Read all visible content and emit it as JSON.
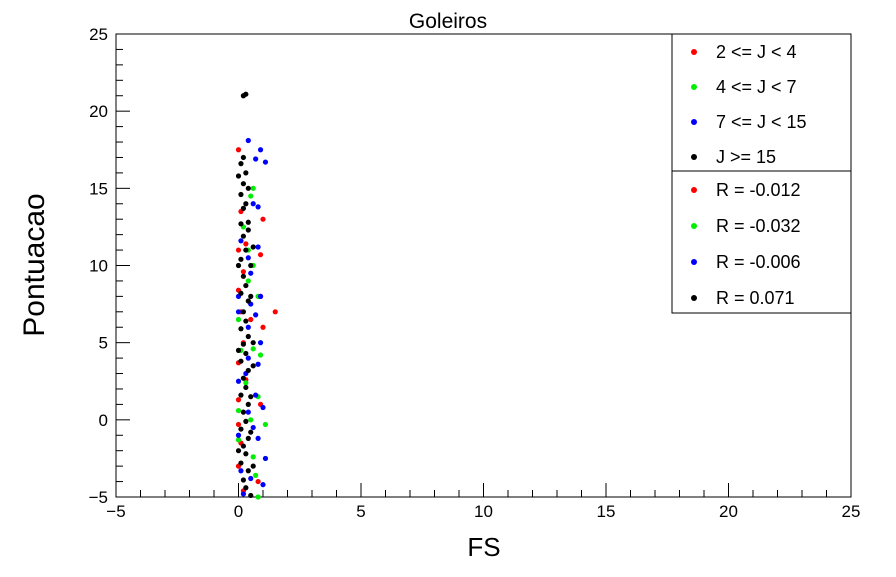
{
  "chart_data": {
    "type": "scatter",
    "title": "Goleiros",
    "xlabel": "FS",
    "ylabel": "Pontuacao",
    "xlim": [
      -5,
      25
    ],
    "ylim": [
      -5,
      25
    ],
    "xticks": [
      -5,
      0,
      5,
      10,
      15,
      20,
      25
    ],
    "yticks": [
      -5,
      0,
      5,
      10,
      15,
      20,
      25
    ],
    "xtick_labels": [
      "−5",
      "0",
      "5",
      "10",
      "15",
      "20",
      "25"
    ],
    "ytick_labels": [
      "−5",
      "0",
      "5",
      "10",
      "15",
      "20",
      "25"
    ],
    "grid": false,
    "legend_position": "top-right",
    "series": [
      {
        "name": "2 <= J < 4",
        "color": "#ff0000",
        "points": [
          [
            0.0,
            17.5
          ],
          [
            0.1,
            13.5
          ],
          [
            0.0,
            11.0
          ],
          [
            1.0,
            13.0
          ],
          [
            0.9,
            10.7
          ],
          [
            0.2,
            9.6
          ],
          [
            0.0,
            8.4
          ],
          [
            0.1,
            7.0
          ],
          [
            0.9,
            8.0
          ],
          [
            1.5,
            7.0
          ],
          [
            1.0,
            6.0
          ],
          [
            0.2,
            5.0
          ],
          [
            0.0,
            3.7
          ],
          [
            0.3,
            2.6
          ],
          [
            0.9,
            1.0
          ],
          [
            0.0,
            -0.3
          ],
          [
            0.1,
            -1.5
          ],
          [
            0.0,
            -3.0
          ],
          [
            0.8,
            -4.0
          ],
          [
            0.2,
            -4.6
          ],
          [
            0.5,
            6.5
          ],
          [
            0.3,
            11.4
          ],
          [
            0.0,
            1.3
          ]
        ]
      },
      {
        "name": "4 <= J < 7",
        "color": "#00ee00",
        "points": [
          [
            0.6,
            15.0
          ],
          [
            0.5,
            14.5
          ],
          [
            0.4,
            11.0
          ],
          [
            0.6,
            10.0
          ],
          [
            0.4,
            9.0
          ],
          [
            0.8,
            8.0
          ],
          [
            0.0,
            6.5
          ],
          [
            0.9,
            5.0
          ],
          [
            0.1,
            4.5
          ],
          [
            0.9,
            4.2
          ],
          [
            0.3,
            2.4
          ],
          [
            0.8,
            1.5
          ],
          [
            0.0,
            0.6
          ],
          [
            1.1,
            -0.3
          ],
          [
            0.0,
            -1.3
          ],
          [
            1.1,
            -2.5
          ],
          [
            0.7,
            -3.6
          ],
          [
            0.8,
            -5.0
          ],
          [
            0.5,
            0.0
          ],
          [
            0.6,
            4.6
          ],
          [
            0.2,
            12.5
          ],
          [
            0.6,
            -2.4
          ]
        ]
      },
      {
        "name": "7 <= J < 15",
        "color": "#0000ff",
        "points": [
          [
            0.4,
            18.1
          ],
          [
            0.9,
            17.5
          ],
          [
            0.7,
            16.9
          ],
          [
            1.1,
            16.7
          ],
          [
            0.6,
            14.0
          ],
          [
            0.8,
            13.8
          ],
          [
            0.1,
            11.6
          ],
          [
            0.8,
            11.2
          ],
          [
            0.4,
            10.5
          ],
          [
            0.0,
            8.0
          ],
          [
            0.9,
            8.0
          ],
          [
            0.5,
            7.5
          ],
          [
            0.0,
            7.0
          ],
          [
            0.4,
            6.0
          ],
          [
            0.9,
            5.0
          ],
          [
            0.4,
            4.0
          ],
          [
            0.8,
            3.6
          ],
          [
            0.0,
            2.5
          ],
          [
            0.7,
            1.6
          ],
          [
            0.4,
            0.5
          ],
          [
            1.0,
            0.8
          ],
          [
            0.0,
            -1.0
          ],
          [
            0.8,
            -1.2
          ],
          [
            1.1,
            -2.5
          ],
          [
            0.1,
            -3.3
          ],
          [
            0.5,
            -3.8
          ],
          [
            1.0,
            -4.2
          ],
          [
            0.2,
            -4.8
          ],
          [
            0.3,
            3.0
          ],
          [
            0.5,
            9.5
          ],
          [
            0.6,
            -0.5
          ],
          [
            0.7,
            6.8
          ]
        ]
      },
      {
        "name": "J >= 15",
        "color": "#000000",
        "points": [
          [
            0.3,
            21.1
          ],
          [
            0.2,
            21.0
          ],
          [
            0.2,
            17.0
          ],
          [
            0.1,
            16.6
          ],
          [
            0.3,
            16.0
          ],
          [
            0.2,
            15.3
          ],
          [
            0.4,
            15.0
          ],
          [
            0.1,
            14.6
          ],
          [
            0.3,
            14.0
          ],
          [
            0.2,
            13.7
          ],
          [
            0.1,
            12.7
          ],
          [
            0.4,
            12.3
          ],
          [
            0.2,
            11.9
          ],
          [
            0.3,
            11.0
          ],
          [
            0.1,
            10.4
          ],
          [
            0.5,
            10.0
          ],
          [
            0.2,
            9.3
          ],
          [
            0.3,
            8.7
          ],
          [
            0.1,
            8.2
          ],
          [
            0.4,
            7.7
          ],
          [
            0.2,
            7.0
          ],
          [
            0.3,
            6.4
          ],
          [
            0.1,
            5.9
          ],
          [
            0.4,
            5.4
          ],
          [
            0.2,
            4.9
          ],
          [
            0.3,
            4.3
          ],
          [
            0.1,
            3.8
          ],
          [
            0.4,
            3.2
          ],
          [
            0.2,
            2.7
          ],
          [
            0.3,
            2.1
          ],
          [
            0.1,
            1.6
          ],
          [
            0.4,
            1.0
          ],
          [
            0.2,
            0.5
          ],
          [
            0.3,
            -0.1
          ],
          [
            0.1,
            -0.6
          ],
          [
            0.4,
            -1.2
          ],
          [
            0.2,
            -1.7
          ],
          [
            0.3,
            -2.2
          ],
          [
            0.1,
            -2.8
          ],
          [
            0.4,
            -3.3
          ],
          [
            0.2,
            -3.9
          ],
          [
            0.3,
            -4.4
          ],
          [
            0.5,
            -4.9
          ],
          [
            0.6,
            -3.0
          ],
          [
            0.5,
            1.5
          ],
          [
            0.6,
            5.0
          ],
          [
            0.5,
            8.0
          ],
          [
            0.6,
            11.2
          ],
          [
            0.0,
            10.0
          ],
          [
            0.0,
            4.5
          ],
          [
            0.0,
            -2.0
          ],
          [
            0.5,
            -0.8
          ],
          [
            0.6,
            3.5
          ],
          [
            0.4,
            12.8
          ],
          [
            0.0,
            15.8
          ]
        ]
      }
    ],
    "annotations": [
      "R = -0.012",
      "R = -0.032",
      "R = -0.006",
      "R = 0.071"
    ],
    "annotation_colors": [
      "#ff0000",
      "#00ee00",
      "#0000ff",
      "#000000"
    ]
  }
}
